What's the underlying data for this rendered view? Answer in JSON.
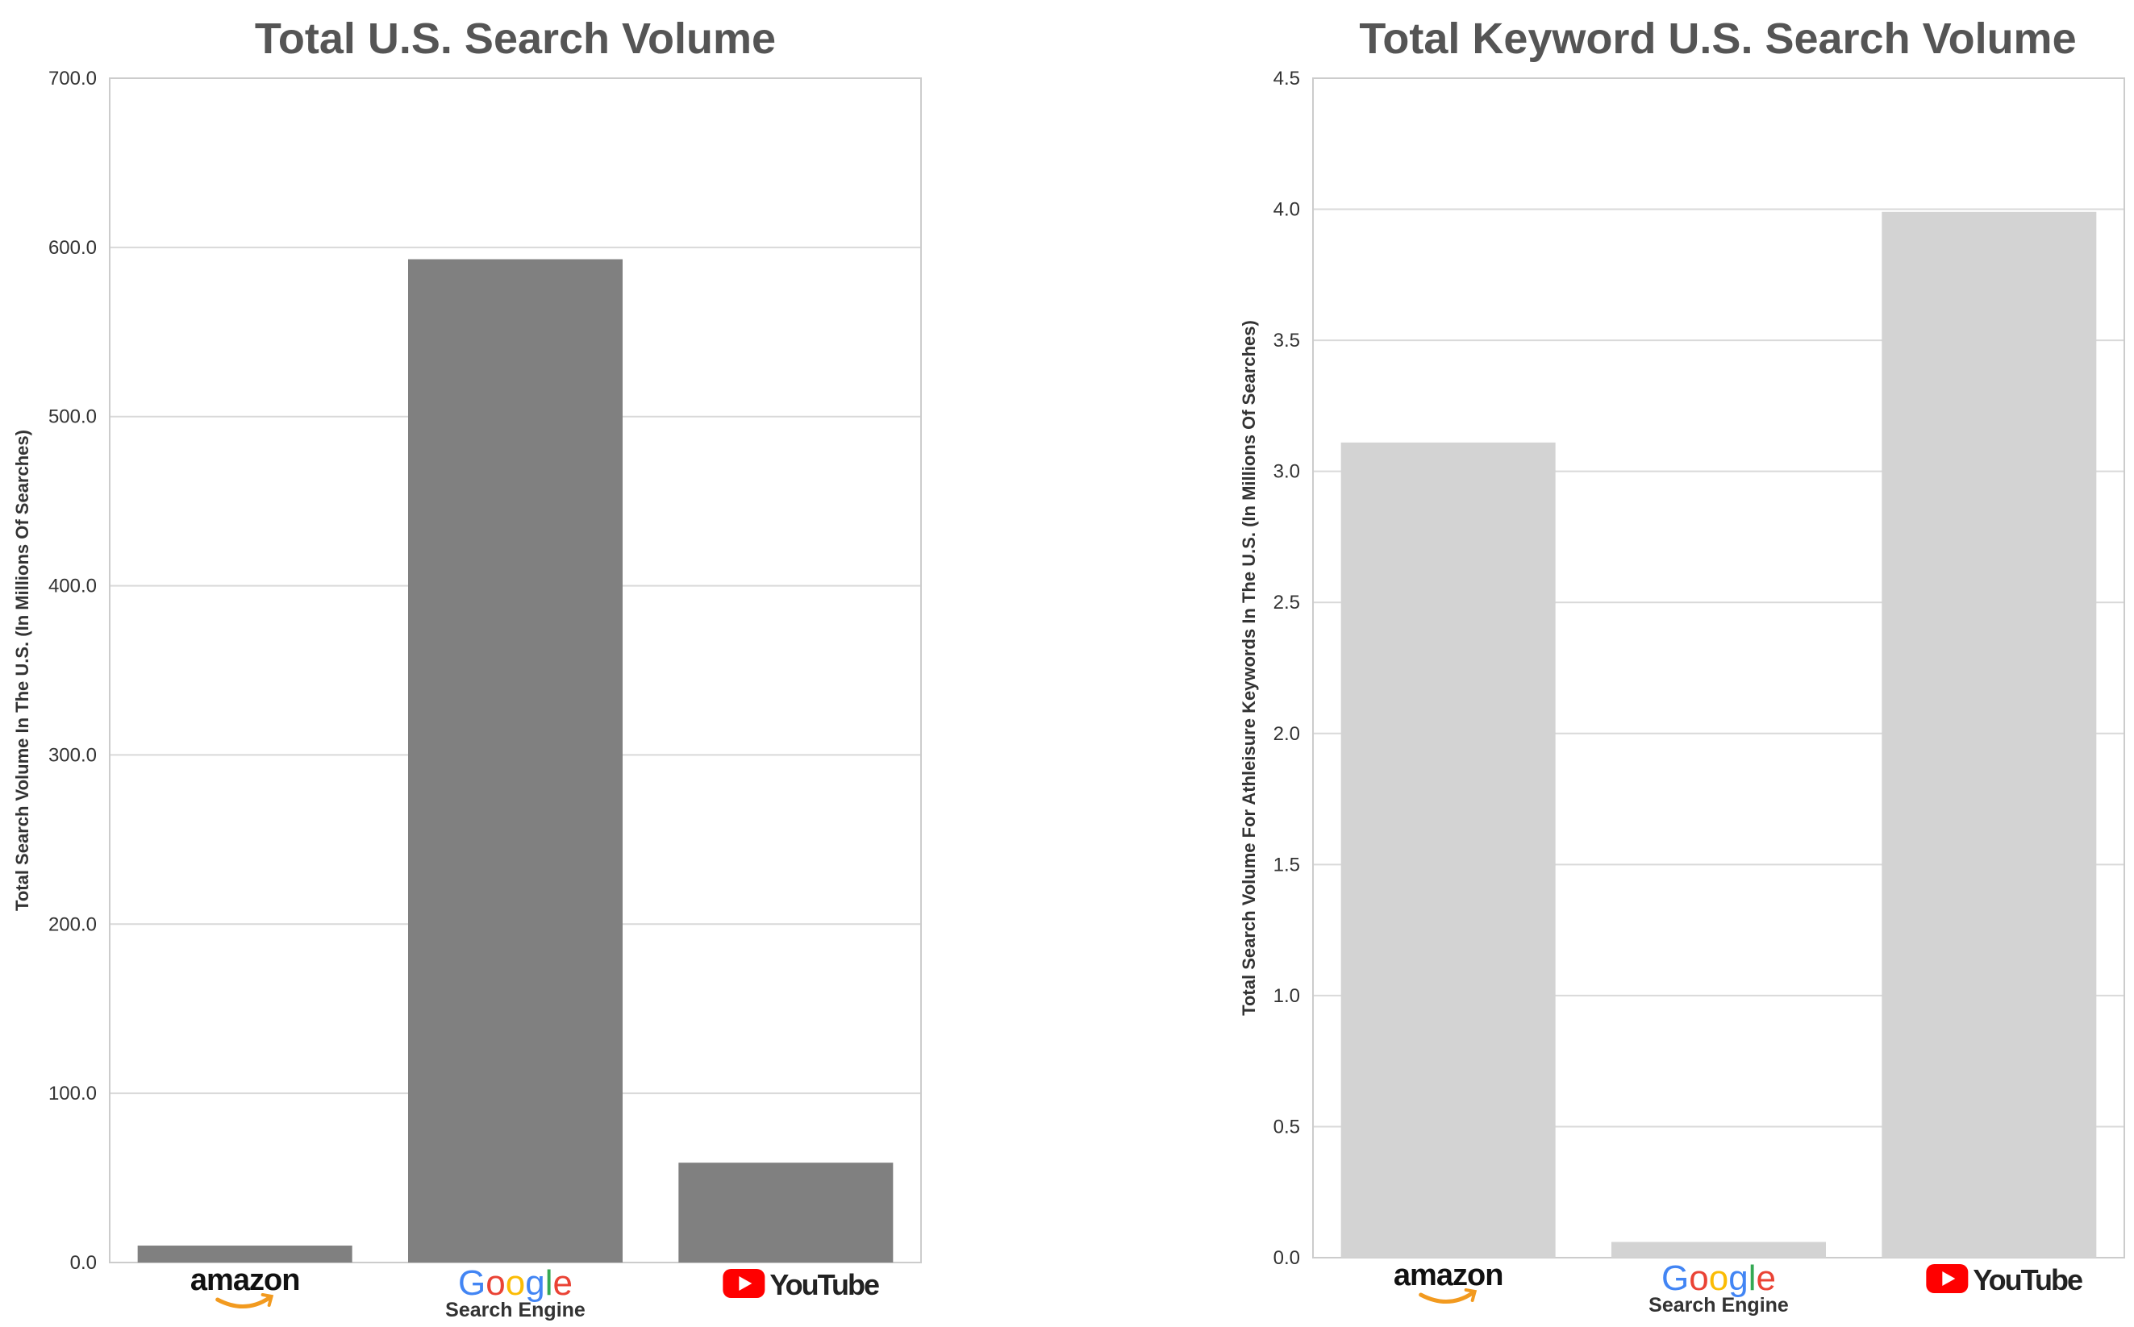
{
  "chart_data": [
    {
      "type": "bar",
      "title": "Total U.S. Search Volume",
      "xlabel": "Search Engine",
      "ylabel": "Total Search Volume In The U.S. (In Millions Of Searches)",
      "categories": [
        "amazon",
        "Google",
        "YouTube"
      ],
      "values": [
        10,
        593,
        59
      ],
      "ylim": [
        0,
        700
      ],
      "yticks": [
        "0.0",
        "100.0",
        "200.0",
        "300.0",
        "400.0",
        "500.0",
        "600.0",
        "700.0"
      ],
      "bar_color": "#808080",
      "grid": true,
      "legend": "none"
    },
    {
      "type": "bar",
      "title": "Total Keyword U.S. Search Volume",
      "xlabel": "Search Engine",
      "ylabel": "Total Search Volume For Athleisure Keywords In The U.S. (In Millions Of Searches)",
      "categories": [
        "amazon",
        "Google",
        "YouTube"
      ],
      "values": [
        3.11,
        0.06,
        3.99
      ],
      "ylim": [
        0,
        4.5
      ],
      "yticks": [
        "0.0",
        "0.5",
        "1.0",
        "1.5",
        "2.0",
        "2.5",
        "3.0",
        "3.5",
        "4.0",
        "4.5"
      ],
      "bar_color": "#d3d3d3",
      "grid": true,
      "legend": "none"
    }
  ],
  "colors": {
    "title": "#555555",
    "text": "#333333",
    "grid": "#d9d9d9",
    "frame": "#cccccc",
    "amazon_arrow": "#f29a1f",
    "google_blue": "#4285f4",
    "google_red": "#ea4335",
    "google_yellow": "#fbbc05",
    "google_green": "#34a853",
    "youtube_red": "#ff0000"
  },
  "logos": [
    "amazon-logo",
    "google-logo",
    "youtube-logo"
  ]
}
